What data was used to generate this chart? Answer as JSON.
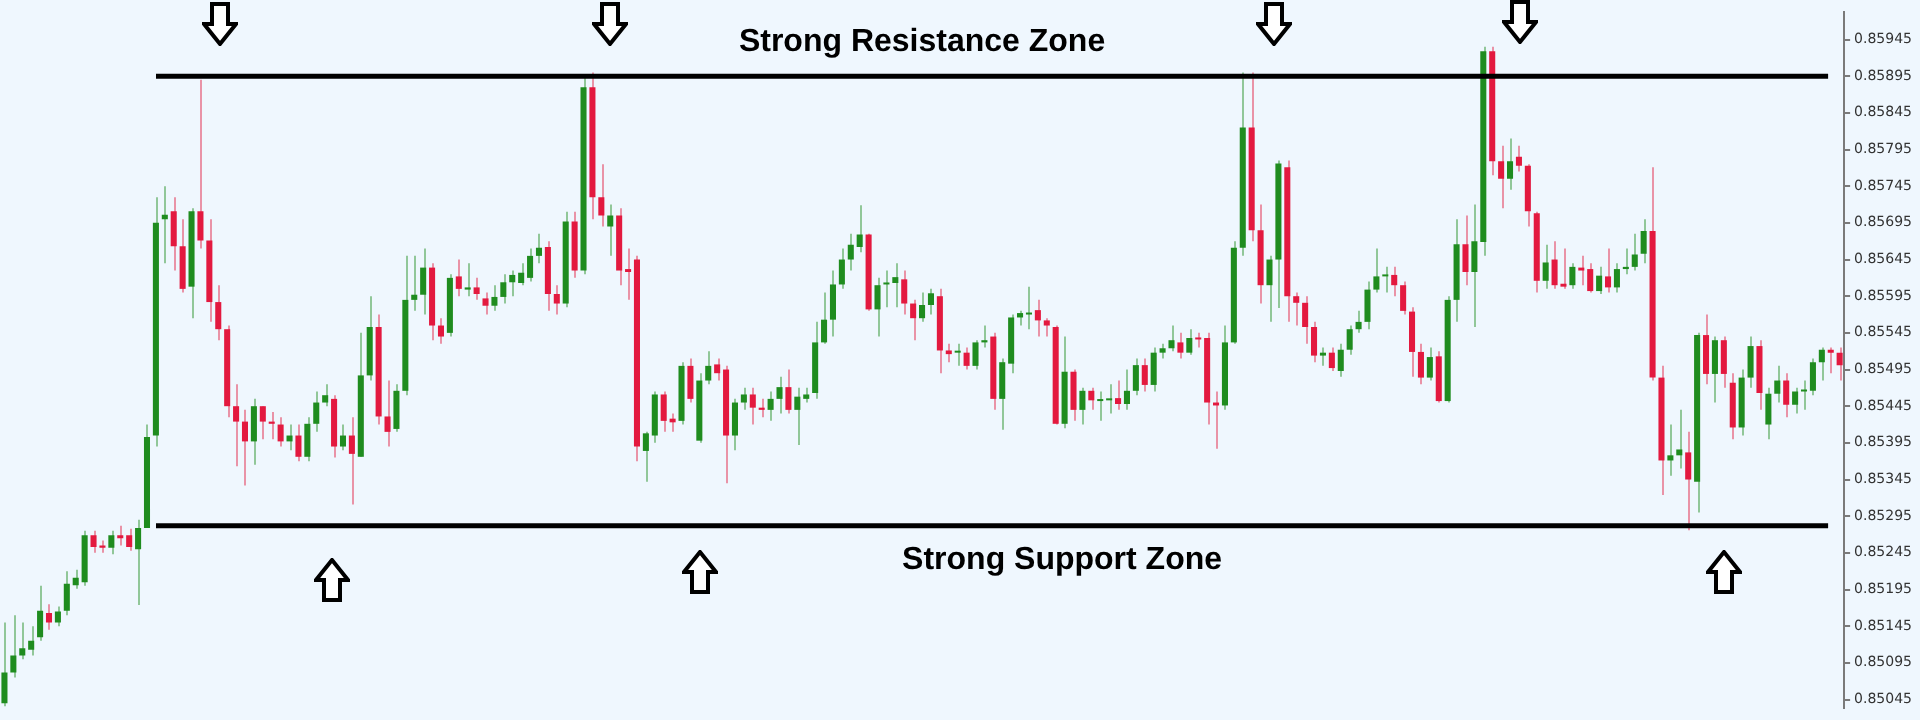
{
  "chart_data": {
    "type": "candlestick",
    "tick_labels": "y",
    "ylim": [
      0.85034,
      0.85982
    ],
    "yticks": [
      0.85045,
      0.85095,
      0.85145,
      0.85195,
      0.85245,
      0.85295,
      0.85345,
      0.85395,
      0.85445,
      0.85495,
      0.85545,
      0.85595,
      0.85645,
      0.85695,
      0.85745,
      0.85795,
      0.85845,
      0.85895,
      0.85945
    ],
    "ref_lines": [
      {
        "axis": "y",
        "value": 0.85895,
        "label": "Strong Resistance Zone",
        "color": "#000000"
      },
      {
        "axis": "y",
        "value": 0.85282,
        "label": "Strong Support Zone",
        "color": "#000000"
      }
    ],
    "categories": [
      null,
      null,
      null,
      null,
      null,
      null,
      null,
      null,
      null,
      null,
      null,
      null,
      null,
      null,
      null,
      null,
      null,
      null,
      null,
      null,
      null,
      null,
      null,
      null,
      null,
      null,
      null,
      null,
      null,
      null,
      null,
      null,
      null,
      null,
      null,
      null,
      null,
      null,
      null,
      null,
      null,
      null,
      null,
      null,
      null,
      null,
      null,
      null,
      null,
      null,
      null,
      null,
      null,
      null,
      null,
      null,
      null,
      null,
      null,
      null,
      null,
      null,
      null,
      null,
      null,
      null,
      null,
      null,
      null,
      null,
      null,
      null,
      null,
      null,
      null,
      null,
      null,
      null,
      null,
      null,
      null,
      null,
      null,
      null,
      null,
      null,
      null,
      null,
      null,
      null,
      null,
      null,
      null,
      null,
      null,
      null,
      null,
      null,
      null,
      null,
      null,
      null,
      null,
      null,
      null,
      null,
      null,
      null,
      null,
      null,
      null,
      null,
      null,
      null,
      null,
      null,
      null,
      null,
      null,
      null,
      null,
      null,
      null,
      null,
      null,
      null,
      null,
      null,
      null,
      null,
      null,
      null,
      null,
      null,
      null,
      null,
      null,
      null,
      null,
      null,
      null,
      null,
      null,
      null,
      null,
      null,
      null,
      null,
      null,
      null,
      null,
      null,
      null,
      null,
      null,
      null,
      null,
      null,
      null,
      null,
      null,
      null,
      null,
      null,
      null,
      null,
      null,
      null,
      null,
      null,
      null,
      null,
      null,
      null,
      null,
      null,
      null,
      null,
      null,
      null,
      null,
      null,
      null,
      null,
      null,
      null,
      null,
      null,
      null,
      null,
      null,
      null,
      null,
      null,
      null,
      null,
      null,
      null,
      null,
      null,
      null,
      null,
      null,
      null,
      null,
      null,
      null
    ],
    "ohlc": [
      [
        0.8504,
        0.8515,
        0.85036,
        0.85082
      ],
      [
        0.85082,
        0.8516,
        0.85075,
        0.85105
      ],
      [
        0.85105,
        0.8515,
        0.851,
        0.85115
      ],
      [
        0.85113,
        0.85145,
        0.85105,
        0.85125
      ],
      [
        0.8513,
        0.852,
        0.85125,
        0.85166
      ],
      [
        0.85163,
        0.85175,
        0.8514,
        0.8515
      ],
      [
        0.8515,
        0.85172,
        0.85145,
        0.85165
      ],
      [
        0.85166,
        0.8522,
        0.8516,
        0.85203
      ],
      [
        0.85201,
        0.85222,
        0.85196,
        0.85211
      ],
      [
        0.85205,
        0.85275,
        0.852,
        0.85269
      ],
      [
        0.85269,
        0.85275,
        0.85245,
        0.85253
      ],
      [
        0.85255,
        0.85262,
        0.85245,
        0.85252
      ],
      [
        0.85252,
        0.85275,
        0.85243,
        0.85269
      ],
      [
        0.85269,
        0.85282,
        0.85255,
        0.85265
      ],
      [
        0.85269,
        0.85278,
        0.85248,
        0.85253
      ],
      [
        0.8525,
        0.8529,
        0.85174,
        0.85279
      ],
      [
        0.85279,
        0.8542,
        0.85279,
        0.85403
      ],
      [
        0.85405,
        0.8573,
        0.8539,
        0.85695
      ],
      [
        0.857,
        0.85745,
        0.8564,
        0.85706
      ],
      [
        0.85711,
        0.8573,
        0.8563,
        0.85663
      ],
      [
        0.85663,
        0.857,
        0.856,
        0.85605
      ],
      [
        0.85608,
        0.85715,
        0.85565,
        0.85711
      ],
      [
        0.85711,
        0.8589,
        0.8566,
        0.85671
      ],
      [
        0.85671,
        0.857,
        0.8556,
        0.85587
      ],
      [
        0.85587,
        0.8561,
        0.85535,
        0.8555
      ],
      [
        0.8555,
        0.85555,
        0.8543,
        0.85445
      ],
      [
        0.85445,
        0.85475,
        0.85363,
        0.85424
      ],
      [
        0.85424,
        0.8544,
        0.85337,
        0.85397
      ],
      [
        0.85397,
        0.85455,
        0.85365,
        0.85445
      ],
      [
        0.85445,
        0.85445,
        0.854,
        0.85424
      ],
      [
        0.85424,
        0.85437,
        0.854,
        0.85421
      ],
      [
        0.8542,
        0.8543,
        0.8539,
        0.85397
      ],
      [
        0.85397,
        0.8542,
        0.85385,
        0.85405
      ],
      [
        0.85405,
        0.8542,
        0.8537,
        0.85376
      ],
      [
        0.85376,
        0.8543,
        0.8537,
        0.85421
      ],
      [
        0.85421,
        0.85465,
        0.8541,
        0.8545
      ],
      [
        0.8545,
        0.85475,
        0.85445,
        0.8546
      ],
      [
        0.85455,
        0.8546,
        0.85375,
        0.8539
      ],
      [
        0.8539,
        0.8542,
        0.85385,
        0.85405
      ],
      [
        0.85405,
        0.8543,
        0.85311,
        0.8538
      ],
      [
        0.85376,
        0.85545,
        0.85376,
        0.85487
      ],
      [
        0.85487,
        0.85595,
        0.8548,
        0.85553
      ],
      [
        0.85553,
        0.8557,
        0.8542,
        0.85431
      ],
      [
        0.85431,
        0.8548,
        0.8539,
        0.8541
      ],
      [
        0.85414,
        0.85475,
        0.8541,
        0.85466
      ],
      [
        0.85466,
        0.8565,
        0.8546,
        0.8559
      ],
      [
        0.8559,
        0.8565,
        0.85575,
        0.85597
      ],
      [
        0.85597,
        0.8566,
        0.8557,
        0.85634
      ],
      [
        0.85634,
        0.8564,
        0.85535,
        0.85555
      ],
      [
        0.85555,
        0.85565,
        0.8553,
        0.8554
      ],
      [
        0.85545,
        0.85625,
        0.8554,
        0.8562
      ],
      [
        0.85622,
        0.85645,
        0.85595,
        0.85605
      ],
      [
        0.85604,
        0.8564,
        0.85595,
        0.85607
      ],
      [
        0.85607,
        0.8562,
        0.8559,
        0.85598
      ],
      [
        0.85592,
        0.856,
        0.8557,
        0.85582
      ],
      [
        0.85582,
        0.8561,
        0.85575,
        0.85594
      ],
      [
        0.85594,
        0.85625,
        0.85585,
        0.85614
      ],
      [
        0.85614,
        0.8563,
        0.85595,
        0.85624
      ],
      [
        0.85613,
        0.8564,
        0.8561,
        0.85627
      ],
      [
        0.8562,
        0.8566,
        0.85615,
        0.8565
      ],
      [
        0.8565,
        0.8568,
        0.8564,
        0.85661
      ],
      [
        0.85662,
        0.8567,
        0.85575,
        0.85598
      ],
      [
        0.85598,
        0.8561,
        0.8557,
        0.85585
      ],
      [
        0.85585,
        0.8571,
        0.8558,
        0.85697
      ],
      [
        0.85697,
        0.8571,
        0.8562,
        0.8563
      ],
      [
        0.8563,
        0.85895,
        0.85625,
        0.8588
      ],
      [
        0.8588,
        0.859,
        0.857,
        0.8573
      ],
      [
        0.8573,
        0.85775,
        0.8569,
        0.85705
      ],
      [
        0.8569,
        0.8572,
        0.8565,
        0.85705
      ],
      [
        0.85705,
        0.85715,
        0.8561,
        0.8563
      ],
      [
        0.85632,
        0.8566,
        0.8559,
        0.85628
      ],
      [
        0.85645,
        0.8565,
        0.8537,
        0.8539
      ],
      [
        0.85384,
        0.8541,
        0.85342,
        0.85408
      ],
      [
        0.85405,
        0.85465,
        0.85395,
        0.85461
      ],
      [
        0.85461,
        0.85465,
        0.8541,
        0.85425
      ],
      [
        0.85428,
        0.85435,
        0.8541,
        0.85423
      ],
      [
        0.85425,
        0.85505,
        0.8542,
        0.855
      ],
      [
        0.855,
        0.8551,
        0.8545,
        0.85455
      ],
      [
        0.85398,
        0.8549,
        0.85395,
        0.8548
      ],
      [
        0.8548,
        0.8552,
        0.85475,
        0.855
      ],
      [
        0.85502,
        0.8551,
        0.8548,
        0.8549
      ],
      [
        0.85495,
        0.855,
        0.8534,
        0.85405
      ],
      [
        0.85405,
        0.85455,
        0.85385,
        0.8545
      ],
      [
        0.8545,
        0.8547,
        0.8544,
        0.85461
      ],
      [
        0.85461,
        0.8547,
        0.8542,
        0.85443
      ],
      [
        0.85443,
        0.85455,
        0.8543,
        0.8544
      ],
      [
        0.8544,
        0.85465,
        0.85425,
        0.85455
      ],
      [
        0.85455,
        0.85485,
        0.85435,
        0.85471
      ],
      [
        0.85471,
        0.85495,
        0.85435,
        0.8544
      ],
      [
        0.8544,
        0.8547,
        0.85392,
        0.85458
      ],
      [
        0.85455,
        0.8547,
        0.8545,
        0.85461
      ],
      [
        0.85463,
        0.8556,
        0.85455,
        0.85532
      ],
      [
        0.85532,
        0.856,
        0.8553,
        0.85563
      ],
      [
        0.85563,
        0.8563,
        0.8554,
        0.85611
      ],
      [
        0.85611,
        0.8566,
        0.85605,
        0.85645
      ],
      [
        0.85645,
        0.8568,
        0.8563,
        0.85665
      ],
      [
        0.85662,
        0.85719,
        0.85655,
        0.85679
      ],
      [
        0.85679,
        0.8568,
        0.85575,
        0.85577
      ],
      [
        0.85577,
        0.8562,
        0.8554,
        0.8561
      ],
      [
        0.85611,
        0.8563,
        0.8558,
        0.85613
      ],
      [
        0.85613,
        0.8564,
        0.8558,
        0.85621
      ],
      [
        0.85618,
        0.8563,
        0.8557,
        0.85585
      ],
      [
        0.85585,
        0.8559,
        0.85535,
        0.85565
      ],
      [
        0.85565,
        0.856,
        0.8556,
        0.85583
      ],
      [
        0.85583,
        0.85605,
        0.8557,
        0.85599
      ],
      [
        0.85595,
        0.85605,
        0.8549,
        0.85521
      ],
      [
        0.85521,
        0.8553,
        0.85505,
        0.85516
      ],
      [
        0.85518,
        0.8553,
        0.855,
        0.8552
      ],
      [
        0.85518,
        0.85525,
        0.85495,
        0.855
      ],
      [
        0.855,
        0.85535,
        0.85495,
        0.85532
      ],
      [
        0.85532,
        0.85555,
        0.85525,
        0.85535
      ],
      [
        0.8554,
        0.85545,
        0.8544,
        0.85455
      ],
      [
        0.85455,
        0.8551,
        0.85413,
        0.85505
      ],
      [
        0.85503,
        0.8557,
        0.8549,
        0.85566
      ],
      [
        0.85566,
        0.85575,
        0.85555,
        0.85572
      ],
      [
        0.8557,
        0.85608,
        0.8555,
        0.85571
      ],
      [
        0.85576,
        0.8559,
        0.8554,
        0.85562
      ],
      [
        0.85562,
        0.85565,
        0.8554,
        0.85555
      ],
      [
        0.85553,
        0.85555,
        0.8542,
        0.85421
      ],
      [
        0.85421,
        0.8554,
        0.85415,
        0.85492
      ],
      [
        0.85492,
        0.85495,
        0.85425,
        0.8544
      ],
      [
        0.8544,
        0.8547,
        0.8542,
        0.85466
      ],
      [
        0.85466,
        0.8547,
        0.8544,
        0.85453
      ],
      [
        0.85452,
        0.85465,
        0.85425,
        0.85453
      ],
      [
        0.85453,
        0.85475,
        0.85435,
        0.85455
      ],
      [
        0.85456,
        0.8548,
        0.8544,
        0.85448
      ],
      [
        0.85448,
        0.85495,
        0.8544,
        0.85466
      ],
      [
        0.85466,
        0.8551,
        0.8546,
        0.85501
      ],
      [
        0.85501,
        0.8551,
        0.85465,
        0.85474
      ],
      [
        0.85474,
        0.85525,
        0.85465,
        0.85518
      ],
      [
        0.85518,
        0.8553,
        0.8551,
        0.85524
      ],
      [
        0.85524,
        0.85555,
        0.8552,
        0.85535
      ],
      [
        0.85532,
        0.85545,
        0.8551,
        0.85518
      ],
      [
        0.85518,
        0.8555,
        0.85515,
        0.85538
      ],
      [
        0.85538,
        0.85545,
        0.85525,
        0.85536
      ],
      [
        0.85538,
        0.85545,
        0.8542,
        0.8545
      ],
      [
        0.8545,
        0.85465,
        0.85387,
        0.85446
      ],
      [
        0.85446,
        0.85555,
        0.8544,
        0.85532
      ],
      [
        0.85532,
        0.8567,
        0.8553,
        0.85661
      ],
      [
        0.85661,
        0.859,
        0.8565,
        0.85825
      ],
      [
        0.85825,
        0.859,
        0.8567,
        0.85685
      ],
      [
        0.85685,
        0.8572,
        0.85585,
        0.8561
      ],
      [
        0.8561,
        0.8565,
        0.8556,
        0.85645
      ],
      [
        0.85645,
        0.8578,
        0.85579,
        0.85776
      ],
      [
        0.85771,
        0.8578,
        0.8556,
        0.85595
      ],
      [
        0.85595,
        0.856,
        0.85555,
        0.85586
      ],
      [
        0.85586,
        0.85595,
        0.8553,
        0.85553
      ],
      [
        0.85553,
        0.8556,
        0.85505,
        0.85514
      ],
      [
        0.85514,
        0.85525,
        0.855,
        0.85518
      ],
      [
        0.85518,
        0.85525,
        0.85493,
        0.85497
      ],
      [
        0.85493,
        0.8553,
        0.85485,
        0.85522
      ],
      [
        0.85522,
        0.85555,
        0.85515,
        0.8555
      ],
      [
        0.8555,
        0.85575,
        0.85545,
        0.8556
      ],
      [
        0.8556,
        0.85615,
        0.8555,
        0.85604
      ],
      [
        0.85604,
        0.8566,
        0.856,
        0.85622
      ],
      [
        0.85622,
        0.85635,
        0.856,
        0.85624
      ],
      [
        0.85624,
        0.85635,
        0.85595,
        0.8561
      ],
      [
        0.8561,
        0.85615,
        0.8557,
        0.85575
      ],
      [
        0.85574,
        0.8558,
        0.85485,
        0.85519
      ],
      [
        0.85519,
        0.8553,
        0.85475,
        0.85484
      ],
      [
        0.85484,
        0.85525,
        0.8548,
        0.85512
      ],
      [
        0.85513,
        0.8552,
        0.8545,
        0.85452
      ],
      [
        0.85452,
        0.85595,
        0.8545,
        0.8559
      ],
      [
        0.8559,
        0.857,
        0.8556,
        0.85666
      ],
      [
        0.85666,
        0.85705,
        0.8561,
        0.85628
      ],
      [
        0.85628,
        0.8572,
        0.85553,
        0.8567
      ],
      [
        0.85669,
        0.85935,
        0.8565,
        0.85929
      ],
      [
        0.85929,
        0.85935,
        0.8576,
        0.85779
      ],
      [
        0.85779,
        0.858,
        0.85715,
        0.85755
      ],
      [
        0.85755,
        0.8581,
        0.8574,
        0.85779
      ],
      [
        0.85785,
        0.858,
        0.85765,
        0.85773
      ],
      [
        0.85773,
        0.85775,
        0.8569,
        0.85711
      ],
      [
        0.85708,
        0.8571,
        0.856,
        0.85616
      ],
      [
        0.85616,
        0.85665,
        0.85605,
        0.85641
      ],
      [
        0.85645,
        0.8567,
        0.85605,
        0.8561
      ],
      [
        0.85612,
        0.8566,
        0.85605,
        0.85608
      ],
      [
        0.8561,
        0.8564,
        0.85605,
        0.85635
      ],
      [
        0.85634,
        0.8565,
        0.8561,
        0.8563
      ],
      [
        0.85632,
        0.8564,
        0.856,
        0.85602
      ],
      [
        0.85602,
        0.85635,
        0.85598,
        0.85623
      ],
      [
        0.85622,
        0.8566,
        0.856,
        0.85607
      ],
      [
        0.85607,
        0.8564,
        0.856,
        0.85632
      ],
      [
        0.85632,
        0.8566,
        0.85625,
        0.85635
      ],
      [
        0.85635,
        0.8568,
        0.8563,
        0.85652
      ],
      [
        0.85653,
        0.857,
        0.8564,
        0.85684
      ],
      [
        0.85684,
        0.85771,
        0.8548,
        0.85484
      ],
      [
        0.85484,
        0.855,
        0.85324,
        0.85371
      ],
      [
        0.85371,
        0.8542,
        0.8535,
        0.85378
      ],
      [
        0.85378,
        0.8544,
        0.8536,
        0.85386
      ],
      [
        0.85382,
        0.8541,
        0.85276,
        0.85345
      ],
      [
        0.85342,
        0.85545,
        0.853,
        0.85542
      ],
      [
        0.85542,
        0.8557,
        0.85475,
        0.85489
      ],
      [
        0.85489,
        0.8554,
        0.8545,
        0.85535
      ],
      [
        0.85535,
        0.8554,
        0.8547,
        0.85489
      ],
      [
        0.85477,
        0.8549,
        0.854,
        0.85416
      ],
      [
        0.85416,
        0.85495,
        0.85405,
        0.85484
      ],
      [
        0.85484,
        0.8554,
        0.8547,
        0.85527
      ],
      [
        0.85527,
        0.85535,
        0.8544,
        0.85463
      ],
      [
        0.8542,
        0.8547,
        0.854,
        0.85462
      ],
      [
        0.85462,
        0.855,
        0.8545,
        0.8548
      ],
      [
        0.8548,
        0.8549,
        0.8543,
        0.85447
      ],
      [
        0.85447,
        0.8547,
        0.85435,
        0.85465
      ],
      [
        0.85465,
        0.8548,
        0.8544,
        0.85466
      ],
      [
        0.85466,
        0.8551,
        0.8546,
        0.85505
      ],
      [
        0.85505,
        0.85525,
        0.8548,
        0.85522
      ],
      [
        0.85522,
        0.85525,
        0.8549,
        0.85518
      ],
      [
        0.85518,
        0.85525,
        0.8548,
        0.85501
      ]
    ],
    "colors": [
      "#1f8c1f",
      "#1f8c1f",
      "#1f8c1f",
      "#1f8c1f",
      "#1f8c1f",
      "#e3193f",
      "#1f8c1f",
      "#1f8c1f",
      "#1f8c1f",
      "#1f8c1f",
      "#e3193f",
      "#e3193f",
      "#1f8c1f",
      "#e3193f",
      "#e3193f",
      "#1f8c1f",
      "#1f8c1f",
      "#1f8c1f",
      "#1f8c1f",
      "#e3193f",
      "#e3193f",
      "#1f8c1f",
      "#e3193f",
      "#e3193f",
      "#e3193f",
      "#e3193f",
      "#e3193f",
      "#e3193f",
      "#1f8c1f",
      "#e3193f",
      "#e3193f",
      "#e3193f",
      "#1f8c1f",
      "#e3193f",
      "#1f8c1f",
      "#1f8c1f",
      "#1f8c1f",
      "#e3193f",
      "#1f8c1f",
      "#e3193f",
      "#1f8c1f",
      "#1f8c1f",
      "#e3193f",
      "#e3193f",
      "#1f8c1f",
      "#1f8c1f",
      "#1f8c1f",
      "#1f8c1f",
      "#e3193f",
      "#e3193f",
      "#1f8c1f",
      "#e3193f",
      "#1f8c1f",
      "#e3193f",
      "#e3193f",
      "#1f8c1f",
      "#1f8c1f",
      "#1f8c1f",
      "#1f8c1f",
      "#1f8c1f",
      "#1f8c1f",
      "#e3193f",
      "#e3193f",
      "#1f8c1f",
      "#e3193f",
      "#1f8c1f",
      "#e3193f",
      "#e3193f",
      "#1f8c1f",
      "#e3193f",
      "#e3193f",
      "#e3193f",
      "#1f8c1f",
      "#1f8c1f",
      "#e3193f",
      "#e3193f",
      "#1f8c1f",
      "#e3193f",
      "#1f8c1f",
      "#1f8c1f",
      "#e3193f",
      "#e3193f",
      "#1f8c1f",
      "#1f8c1f",
      "#e3193f",
      "#e3193f",
      "#1f8c1f",
      "#1f8c1f",
      "#e3193f",
      "#1f8c1f",
      "#1f8c1f",
      "#1f8c1f",
      "#1f8c1f",
      "#1f8c1f",
      "#1f8c1f",
      "#1f8c1f",
      "#1f8c1f",
      "#e3193f",
      "#1f8c1f",
      "#1f8c1f",
      "#1f8c1f",
      "#e3193f",
      "#e3193f",
      "#1f8c1f",
      "#1f8c1f",
      "#e3193f",
      "#e3193f",
      "#1f8c1f",
      "#e3193f",
      "#1f8c1f",
      "#1f8c1f",
      "#e3193f",
      "#1f8c1f",
      "#1f8c1f",
      "#1f8c1f",
      "#1f8c1f",
      "#e3193f",
      "#e3193f",
      "#e3193f",
      "#1f8c1f",
      "#e3193f",
      "#1f8c1f",
      "#e3193f",
      "#1f8c1f",
      "#1f8c1f",
      "#e3193f",
      "#1f8c1f",
      "#1f8c1f",
      "#e3193f",
      "#1f8c1f",
      "#1f8c1f",
      "#1f8c1f",
      "#e3193f",
      "#1f8c1f",
      "#e3193f",
      "#e3193f",
      "#e3193f",
      "#1f8c1f",
      "#1f8c1f",
      "#1f8c1f",
      "#e3193f",
      "#e3193f",
      "#1f8c1f",
      "#1f8c1f",
      "#e3193f",
      "#e3193f",
      "#e3193f",
      "#e3193f",
      "#1f8c1f",
      "#e3193f",
      "#1f8c1f",
      "#1f8c1f",
      "#1f8c1f",
      "#1f8c1f",
      "#1f8c1f",
      "#1f8c1f",
      "#e3193f",
      "#e3193f",
      "#e3193f",
      "#e3193f",
      "#1f8c1f",
      "#e3193f",
      "#1f8c1f",
      "#1f8c1f",
      "#e3193f",
      "#1f8c1f",
      "#1f8c1f",
      "#e3193f",
      "#e3193f",
      "#1f8c1f",
      "#e3193f",
      "#e3193f",
      "#e3193f",
      "#1f8c1f",
      "#e3193f",
      "#e3193f",
      "#1f8c1f",
      "#e3193f",
      "#e3193f",
      "#1f8c1f",
      "#e3193f",
      "#1f8c1f",
      "#1f8c1f",
      "#1f8c1f",
      "#1f8c1f",
      "#e3193f",
      "#e3193f",
      "#1f8c1f",
      "#1f8c1f",
      "#e3193f",
      "#1f8c1f",
      "#e3193f",
      "#1f8c1f",
      "#e3193f",
      "#e3193f",
      "#1f8c1f",
      "#1f8c1f",
      "#e3193f",
      "#1f8c1f",
      "#1f8c1f",
      "#e3193f",
      "#1f8c1f",
      "#1f8c1f",
      "#1f8c1f",
      "#1f8c1f",
      "#e3193f",
      "#e3193f"
    ]
  }
}
